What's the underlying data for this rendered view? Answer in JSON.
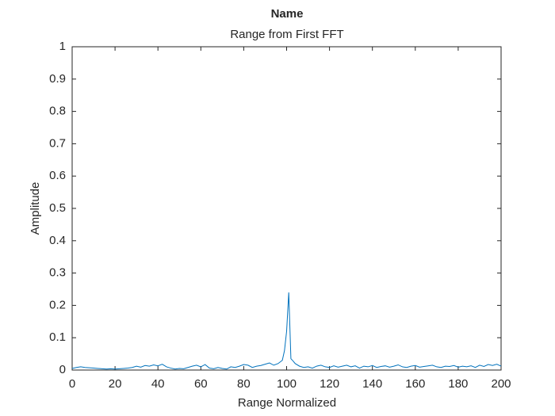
{
  "chart_data": {
    "type": "line",
    "title": "Name",
    "subtitle": "Range from First FFT",
    "x_label": "Range Normalized",
    "y_label": "Amplitude",
    "xlim": [
      0,
      200
    ],
    "ylim": [
      0,
      1
    ],
    "xticks": [
      0,
      20,
      40,
      60,
      80,
      100,
      120,
      140,
      160,
      180,
      200
    ],
    "yticks": [
      0,
      0.1,
      0.2,
      0.3,
      0.4,
      0.5,
      0.6,
      0.7,
      0.8,
      0.9,
      1
    ],
    "grid": false,
    "x": [
      0,
      2,
      4,
      6,
      8,
      10,
      12,
      14,
      16,
      18,
      20,
      22,
      24,
      26,
      28,
      30,
      32,
      34,
      36,
      38,
      40,
      42,
      44,
      46,
      48,
      50,
      52,
      54,
      56,
      58,
      60,
      62,
      64,
      66,
      68,
      70,
      72,
      74,
      76,
      78,
      80,
      82,
      84,
      86,
      88,
      90,
      92,
      94,
      96,
      98,
      99,
      100,
      101,
      102,
      103,
      104,
      106,
      108,
      110,
      112,
      114,
      116,
      118,
      120,
      122,
      124,
      126,
      128,
      130,
      132,
      134,
      136,
      138,
      140,
      142,
      144,
      146,
      148,
      150,
      152,
      154,
      156,
      158,
      160,
      162,
      164,
      166,
      168,
      170,
      172,
      174,
      176,
      178,
      180,
      182,
      184,
      186,
      188,
      190,
      192,
      194,
      196,
      198,
      200
    ],
    "series": [
      {
        "color": "#0072bd",
        "values": [
          0.005,
          0.008,
          0.01,
          0.008,
          0.007,
          0.006,
          0.005,
          0.004,
          0.003,
          0.004,
          0.003,
          0.004,
          0.005,
          0.006,
          0.008,
          0.012,
          0.009,
          0.014,
          0.012,
          0.016,
          0.013,
          0.018,
          0.01,
          0.006,
          0.003,
          0.005,
          0.004,
          0.008,
          0.012,
          0.015,
          0.01,
          0.017,
          0.006,
          0.004,
          0.008,
          0.005,
          0.003,
          0.01,
          0.008,
          0.012,
          0.017,
          0.015,
          0.008,
          0.012,
          0.014,
          0.018,
          0.022,
          0.015,
          0.02,
          0.03,
          0.06,
          0.12,
          0.24,
          0.035,
          0.028,
          0.02,
          0.012,
          0.008,
          0.01,
          0.006,
          0.012,
          0.015,
          0.01,
          0.008,
          0.013,
          0.009,
          0.012,
          0.015,
          0.01,
          0.013,
          0.006,
          0.012,
          0.01,
          0.014,
          0.008,
          0.011,
          0.013,
          0.009,
          0.012,
          0.016,
          0.01,
          0.008,
          0.012,
          0.014,
          0.009,
          0.011,
          0.013,
          0.015,
          0.01,
          0.008,
          0.012,
          0.011,
          0.014,
          0.009,
          0.012,
          0.01,
          0.013,
          0.008,
          0.015,
          0.011,
          0.017,
          0.014,
          0.018,
          0.012
        ]
      }
    ]
  }
}
